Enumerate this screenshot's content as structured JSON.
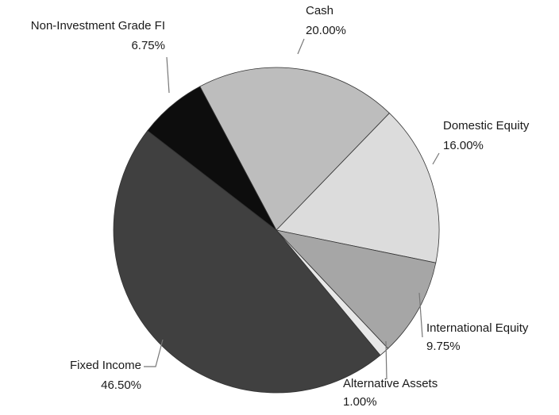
{
  "chart_data": {
    "type": "pie",
    "categories": [
      "Cash",
      "Domestic Equity",
      "International Equity",
      "Alternative Assets",
      "Fixed Income",
      "Non-Investment Grade FI"
    ],
    "values": [
      20,
      16,
      9.75,
      1,
      46.5,
      6.75
    ],
    "value_labels": [
      "20.00%",
      "16.00%",
      "9.75%",
      "1.00%",
      "46.50%",
      "6.75%"
    ],
    "colors": [
      "#bdbdbd",
      "#dcdcdc",
      "#a6a6a6",
      "#e8e8e8",
      "#404040",
      "#0d0d0d"
    ]
  }
}
